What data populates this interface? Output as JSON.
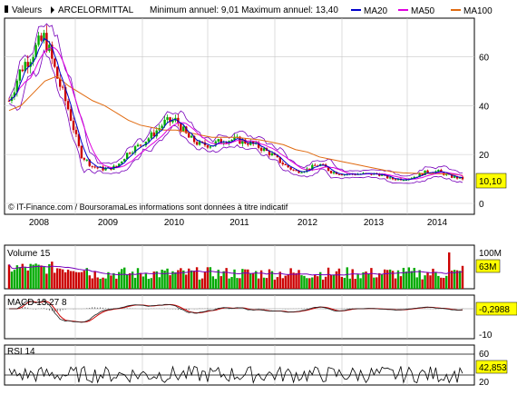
{
  "header": {
    "valeurs_label": "Valeurs",
    "symbol": "ARCELORMITTAL",
    "minmax": "Minimum annuel: 9,01 Maximum annuel: 13,40",
    "legend": [
      {
        "label": "MA20",
        "color": "#0000cc"
      },
      {
        "label": "MA50",
        "color": "#e000e0"
      },
      {
        "label": "MA100",
        "color": "#e06a10"
      }
    ]
  },
  "watermark": "© IT-Finance.com / BoursoramaLes informations sont données à titre indicatif",
  "colors": {
    "up": "#00aa00",
    "down": "#cc0000",
    "bollinger": "#7700bb",
    "grid": "#c8c8c8",
    "axis": "#000000",
    "last_box": "#ffff00"
  },
  "x_axis": {
    "years": [
      "2008",
      "2009",
      "2010",
      "2011",
      "2012",
      "2013",
      "2014"
    ]
  },
  "price_panel": {
    "y_ticks": [
      "0",
      "20",
      "40",
      "60"
    ],
    "last_price_label": "10,10"
  },
  "volume_panel": {
    "title": "Volume 15",
    "y_tick": "100M",
    "last_label": "63M"
  },
  "macd_panel": {
    "title": "MACD 13.27 8",
    "y_tick": "-10",
    "last_label": "-0,2988"
  },
  "rsi_panel": {
    "title": "RSI 14",
    "y_ticks": [
      "60",
      "20"
    ],
    "last_label": "42,853"
  },
  "chart_data": {
    "type": "line",
    "title": "ARCELORMITTAL",
    "x": [
      "2008-01",
      "2008-03",
      "2008-05",
      "2008-06",
      "2008-08",
      "2008-09",
      "2008-10",
      "2008-11",
      "2009-01",
      "2009-03",
      "2009-05",
      "2009-07",
      "2009-09",
      "2009-10",
      "2009-12",
      "2010-03",
      "2010-05",
      "2010-07",
      "2010-09",
      "2010-12",
      "2011-02",
      "2011-04",
      "2011-06",
      "2011-08",
      "2011-10",
      "2011-12",
      "2012-03",
      "2012-05",
      "2012-07",
      "2012-09",
      "2012-12",
      "2013-03",
      "2013-05",
      "2013-07",
      "2013-09",
      "2013-12",
      "2014-03",
      "2014-05",
      "2014-07"
    ],
    "series": [
      {
        "name": "ARCELORMITTAL",
        "values": [
          42,
          55,
          62,
          68,
          52,
          38,
          20,
          15,
          14,
          15,
          21,
          24,
          28,
          33,
          34,
          27,
          24,
          24,
          26,
          26,
          25,
          23,
          20,
          16,
          13,
          14,
          16,
          13,
          12,
          12,
          12,
          12,
          10,
          10,
          11,
          13,
          13,
          11,
          10.1
        ]
      },
      {
        "name": "MA100",
        "values": [
          38,
          40,
          45,
          50,
          52,
          48,
          45,
          42,
          40,
          37,
          34,
          32,
          31,
          30,
          30,
          29,
          28,
          27,
          27,
          27,
          26.5,
          26,
          25,
          24,
          22,
          21,
          19,
          18,
          17,
          16,
          15,
          14,
          13,
          12.5,
          12.3,
          12.2,
          12.1,
          12,
          11.5
        ]
      }
    ],
    "ylim": [
      0,
      75
    ],
    "y_ticks": [
      0,
      20,
      40,
      60
    ],
    "volume": {
      "ylim": [
        0,
        110
      ],
      "last": 63
    },
    "macd": {
      "last": -0.2988
    },
    "rsi": {
      "last": 42.853,
      "levels": [
        20,
        60
      ]
    }
  }
}
